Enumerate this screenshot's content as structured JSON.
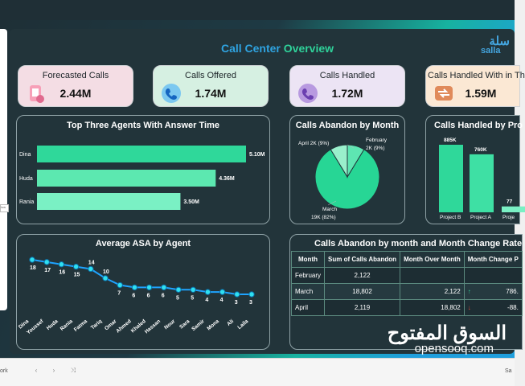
{
  "dashboard": {
    "title_part1": "Call Center",
    "title_part2": "Overview",
    "brand_ar": "سلة",
    "brand_en": "salla"
  },
  "kpis": [
    {
      "label": "Forecasted Calls",
      "value": "2.44M",
      "bg": "#f4dde4",
      "icon": "phone-hand-icon"
    },
    {
      "label": "Calls Offered",
      "value": "1.74M",
      "bg": "#d6f0e2",
      "icon": "phone-ring-icon"
    },
    {
      "label": "Calls Handled",
      "value": "1.72M",
      "bg": "#ece4f4",
      "icon": "phone-handled-icon"
    },
    {
      "label": "Calls Handled With in Th",
      "value": "1.59M",
      "bg": "#fbe8d4",
      "icon": "phone-transfer-icon"
    }
  ],
  "chart_data": [
    {
      "type": "bar",
      "orientation": "horizontal",
      "title": "Top Three Agents With Answer Time",
      "categories": [
        "Dina",
        "Huda",
        "Rania"
      ],
      "values": [
        5.1,
        4.36,
        3.5
      ],
      "labels": [
        "5.10M",
        "4.36M",
        "3.50M"
      ],
      "colors": [
        "#2fd89a",
        "#5ce8b0",
        "#7af0c4"
      ]
    },
    {
      "type": "pie",
      "title": "Calls Abandon by Month",
      "slices": [
        {
          "name": "March",
          "value": 19,
          "label_value": "19K (82%)",
          "color": "#27d695"
        },
        {
          "name": "April",
          "value": 2,
          "label_value": "2K (9%)",
          "color": "#9af0cc"
        },
        {
          "name": "February",
          "value": 2,
          "label_value": "2K (9%)",
          "color": "#5ee6b2"
        }
      ],
      "labels": [
        {
          "text": "April 2K (9%)"
        },
        {
          "text": "February"
        },
        {
          "text": "2K (9%)"
        },
        {
          "text": "March"
        },
        {
          "text": "19K (82%)"
        }
      ]
    },
    {
      "type": "bar",
      "title": "Calls Handled by Pro",
      "categories": [
        "Project B",
        "Project A",
        "Proje"
      ],
      "values": [
        885,
        760,
        77
      ],
      "labels": [
        "885K",
        "760K",
        "77"
      ],
      "colors": [
        "#2fd89a",
        "#3ee0a4",
        "#7af0c4"
      ]
    },
    {
      "type": "line",
      "title": "Average ASA by Agent",
      "categories": [
        "Dina",
        "Youssef",
        "Huda",
        "Rania",
        "Fatma",
        "Tariq",
        "Omar",
        "Ahmed",
        "Khaled",
        "Hassan",
        "Nour",
        "Sara",
        "Samir",
        "Mona",
        "Ali",
        "Laila"
      ],
      "values": [
        18,
        17,
        16,
        15,
        14,
        10,
        7,
        6,
        6,
        6,
        5,
        5,
        4,
        4,
        3,
        3
      ],
      "labels": [
        "18",
        "17",
        "16",
        "15",
        "14",
        "10",
        "7",
        "6",
        "6",
        "6",
        "5",
        "5",
        "4",
        "4",
        "3",
        "3"
      ],
      "line_color": "#1fa3ff",
      "marker_color": "#2fe0f0"
    },
    {
      "type": "table",
      "title": "Calls Abandon by month and Month Change Rate",
      "columns": [
        "Month",
        "Sum of Calls Abandon",
        "Month Over Month",
        "Month Change P"
      ],
      "rows": [
        {
          "month": "February",
          "sum": "2,122",
          "mom": "",
          "arrow": "",
          "pct": ""
        },
        {
          "month": "March",
          "sum": "18,802",
          "mom": "2,122",
          "arrow": "↑",
          "pct": "786."
        },
        {
          "month": "April",
          "sum": "2,119",
          "mom": "18,802",
          "arrow": "↓",
          "pct": "-88."
        }
      ]
    }
  ],
  "watermark": {
    "ar": "السوق المفتوح",
    "en": "opensooq.com"
  },
  "taskbar": {
    "left": "ork",
    "right": "Sa"
  }
}
